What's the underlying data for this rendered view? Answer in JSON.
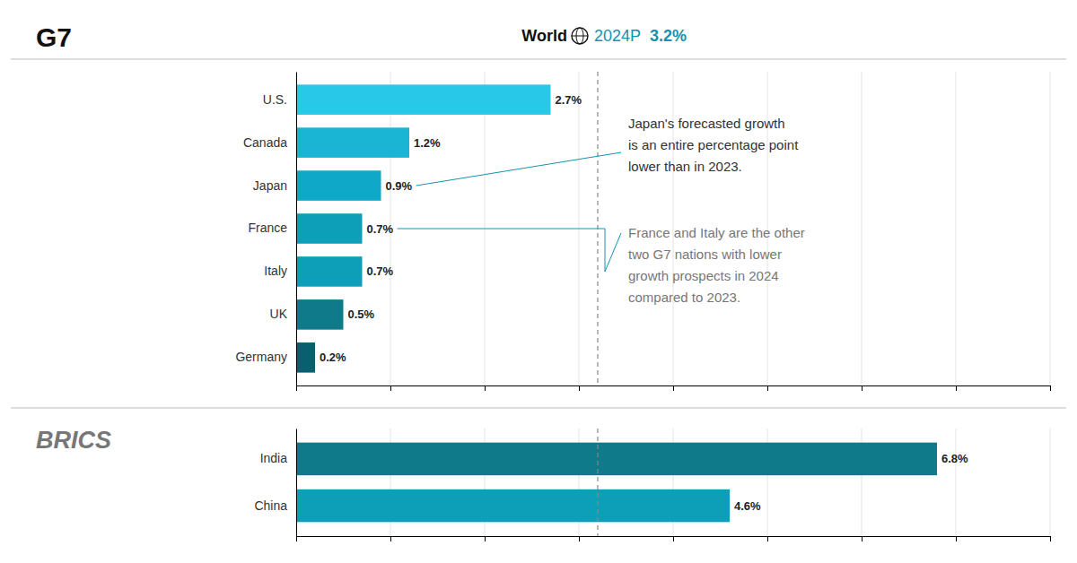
{
  "chart_data": [
    {
      "type": "bar",
      "orientation": "horizontal",
      "title": "G7",
      "categories": [
        "U.S.",
        "Canada",
        "Japan",
        "France",
        "Italy",
        "UK",
        "Germany"
      ],
      "values": [
        2.7,
        1.2,
        0.9,
        0.7,
        0.7,
        0.5,
        0.2
      ],
      "value_labels": [
        "2.7%",
        "1.2%",
        "0.9%",
        "0.7%",
        "0.7%",
        "0.5%",
        "0.2%"
      ],
      "colors": [
        "#28c8e8",
        "#1ab5d5",
        "#0fa8c8",
        "#0d9fb8",
        "#0d9fb8",
        "#0e7a8a",
        "#0a5f6e"
      ],
      "xlim": [
        0,
        8
      ],
      "xticks": [
        0,
        1,
        2,
        3,
        4,
        5,
        6,
        7,
        8
      ],
      "grid": true,
      "tick_labels": "y",
      "data_labels": true,
      "reference_line": {
        "name": "World",
        "period": "2024P",
        "value": 3.2,
        "label": "3.2%"
      },
      "annotations": [
        {
          "text": "Japan's forecasted growth\nis an entire percentage point\nlower than in 2023."
        },
        {
          "text": "France and Italy are the other\ntwo G7 nations with lower\ngrowth prospects in 2024\ncompared to 2023."
        }
      ]
    },
    {
      "type": "bar",
      "orientation": "horizontal",
      "title": "BRICS",
      "categories": [
        "India",
        "China"
      ],
      "values": [
        6.8,
        4.6
      ],
      "value_labels": [
        "6.8%",
        "4.6%"
      ],
      "colors": [
        "#0e7a8a",
        "#0d9fb8"
      ],
      "xlim": [
        0,
        8
      ],
      "xticks": [
        0,
        1,
        2,
        3,
        4,
        5,
        6,
        7,
        8
      ],
      "grid": true,
      "tick_labels": "y",
      "data_labels": true
    }
  ]
}
